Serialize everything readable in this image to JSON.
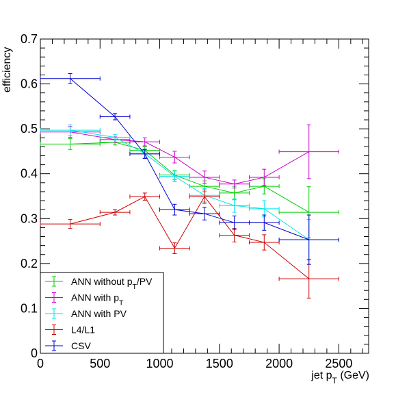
{
  "chart_data": {
    "type": "scatter",
    "title": "",
    "xlabel": "jet p_T (GeV)",
    "ylabel": "efficiency",
    "xlim": [
      0,
      2750
    ],
    "ylim": [
      0,
      0.7
    ],
    "xticks": [
      0,
      500,
      1000,
      1500,
      2000,
      2500
    ],
    "yticks": [
      0,
      0.1,
      0.2,
      0.3,
      0.4,
      0.5,
      0.6,
      0.7
    ],
    "grid": false,
    "legend_position": "bottom-left",
    "series": [
      {
        "name": "ANN without p_T/PV",
        "color": "#00cc00",
        "points": [
          {
            "x": 250,
            "xlo": 0,
            "xhi": 500,
            "y": 0.466,
            "err": 0.012
          },
          {
            "x": 625,
            "xlo": 500,
            "xhi": 750,
            "y": 0.47,
            "err": 0.006
          },
          {
            "x": 875,
            "xlo": 750,
            "xhi": 1000,
            "y": 0.452,
            "err": 0.008
          },
          {
            "x": 1125,
            "xlo": 1000,
            "xhi": 1250,
            "y": 0.397,
            "err": 0.01
          },
          {
            "x": 1375,
            "xlo": 1250,
            "xhi": 1500,
            "y": 0.372,
            "err": 0.012
          },
          {
            "x": 1625,
            "xlo": 1500,
            "xhi": 1750,
            "y": 0.357,
            "err": 0.015
          },
          {
            "x": 1875,
            "xlo": 1750,
            "xhi": 2000,
            "y": 0.372,
            "err": 0.017
          },
          {
            "x": 2250,
            "xlo": 2000,
            "xhi": 2500,
            "y": 0.314,
            "err": 0.057
          }
        ]
      },
      {
        "name": "ANN with p_T",
        "color": "#cc00cc",
        "points": [
          {
            "x": 250,
            "xlo": 0,
            "xhi": 500,
            "y": 0.493,
            "err": 0.012
          },
          {
            "x": 625,
            "xlo": 500,
            "xhi": 750,
            "y": 0.476,
            "err": 0.006
          },
          {
            "x": 875,
            "xlo": 750,
            "xhi": 1000,
            "y": 0.471,
            "err": 0.009
          },
          {
            "x": 1125,
            "xlo": 1000,
            "xhi": 1250,
            "y": 0.437,
            "err": 0.013
          },
          {
            "x": 1375,
            "xlo": 1250,
            "xhi": 1500,
            "y": 0.392,
            "err": 0.014
          },
          {
            "x": 1625,
            "xlo": 1500,
            "xhi": 1750,
            "y": 0.377,
            "err": 0.009
          },
          {
            "x": 1875,
            "xlo": 1750,
            "xhi": 2000,
            "y": 0.392,
            "err": 0.018
          },
          {
            "x": 2250,
            "xlo": 2000,
            "xhi": 2500,
            "y": 0.449,
            "err": 0.06
          }
        ]
      },
      {
        "name": "ANN with PV",
        "color": "#00e5e5",
        "points": [
          {
            "x": 250,
            "xlo": 0,
            "xhi": 500,
            "y": 0.497,
            "err": 0.012
          },
          {
            "x": 625,
            "xlo": 500,
            "xhi": 750,
            "y": 0.481,
            "err": 0.006
          },
          {
            "x": 875,
            "xlo": 750,
            "xhi": 1000,
            "y": 0.445,
            "err": 0.01
          },
          {
            "x": 1125,
            "xlo": 1000,
            "xhi": 1250,
            "y": 0.394,
            "err": 0.012
          },
          {
            "x": 1375,
            "xlo": 1250,
            "xhi": 1500,
            "y": 0.352,
            "err": 0.015
          },
          {
            "x": 1625,
            "xlo": 1500,
            "xhi": 1750,
            "y": 0.329,
            "err": 0.015
          },
          {
            "x": 1875,
            "xlo": 1750,
            "xhi": 2000,
            "y": 0.322,
            "err": 0.018
          },
          {
            "x": 2250,
            "xlo": 2000,
            "xhi": 2500,
            "y": 0.253,
            "err": 0.045
          }
        ]
      },
      {
        "name": "L4/L1",
        "color": "#cc0000",
        "points": [
          {
            "x": 250,
            "xlo": 0,
            "xhi": 500,
            "y": 0.288,
            "err": 0.01
          },
          {
            "x": 625,
            "xlo": 500,
            "xhi": 750,
            "y": 0.314,
            "err": 0.006
          },
          {
            "x": 875,
            "xlo": 750,
            "xhi": 1000,
            "y": 0.349,
            "err": 0.008
          },
          {
            "x": 1125,
            "xlo": 1000,
            "xhi": 1250,
            "y": 0.234,
            "err": 0.012
          },
          {
            "x": 1375,
            "xlo": 1250,
            "xhi": 1500,
            "y": 0.349,
            "err": 0.015
          },
          {
            "x": 1625,
            "xlo": 1500,
            "xhi": 1750,
            "y": 0.263,
            "err": 0.015
          },
          {
            "x": 1875,
            "xlo": 1750,
            "xhi": 2000,
            "y": 0.247,
            "err": 0.017
          },
          {
            "x": 2250,
            "xlo": 2000,
            "xhi": 2500,
            "y": 0.166,
            "err": 0.043
          }
        ]
      },
      {
        "name": "CSV",
        "color": "#0000cc",
        "points": [
          {
            "x": 250,
            "xlo": 0,
            "xhi": 500,
            "y": 0.612,
            "err": 0.011
          },
          {
            "x": 625,
            "xlo": 500,
            "xhi": 750,
            "y": 0.527,
            "err": 0.007
          },
          {
            "x": 875,
            "xlo": 750,
            "xhi": 1000,
            "y": 0.444,
            "err": 0.01
          },
          {
            "x": 1125,
            "xlo": 1000,
            "xhi": 1250,
            "y": 0.32,
            "err": 0.012
          },
          {
            "x": 1375,
            "xlo": 1250,
            "xhi": 1500,
            "y": 0.311,
            "err": 0.014
          },
          {
            "x": 1625,
            "xlo": 1500,
            "xhi": 1750,
            "y": 0.291,
            "err": 0.015
          },
          {
            "x": 1875,
            "xlo": 1750,
            "xhi": 2000,
            "y": 0.291,
            "err": 0.017
          },
          {
            "x": 2250,
            "xlo": 2000,
            "xhi": 2500,
            "y": 0.253,
            "err": 0.055
          }
        ]
      }
    ]
  }
}
